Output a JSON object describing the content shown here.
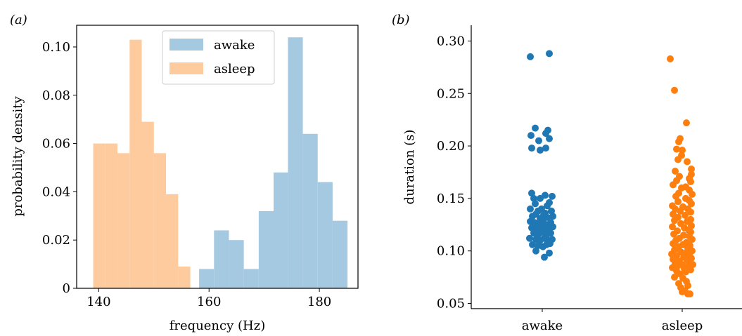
{
  "chart_data": [
    {
      "panel_label": "(a)",
      "type": "bar",
      "subtype": "histogram",
      "xlabel": "frequency (Hz)",
      "ylabel": "probability density",
      "xlim": [
        136,
        187
      ],
      "ylim": [
        0,
        0.109
      ],
      "xticks": [
        140,
        160,
        180
      ],
      "yticks": [
        0,
        0.02,
        0.04,
        0.06,
        0.08,
        0.1
      ],
      "ytick_labels": [
        "0",
        "0.02",
        "0.04",
        "0.06",
        "0.08",
        "0.10"
      ],
      "legend_position": "top-center",
      "series": [
        {
          "name": "awake",
          "color": "#a6c9e2",
          "bin_edges": [
            158.2,
            160.9,
            163.6,
            166.3,
            169.0,
            171.7,
            174.3,
            177.0,
            179.7,
            182.4,
            185.1
          ],
          "values": [
            0.008,
            0.024,
            0.02,
            0.008,
            0.032,
            0.048,
            0.104,
            0.064,
            0.044,
            0.028
          ]
        },
        {
          "name": "asleep",
          "color": "#fdcb9e",
          "bin_edges": [
            139.0,
            141.2,
            143.4,
            145.6,
            147.8,
            150.0,
            152.2,
            154.4,
            156.6
          ],
          "values": [
            0.06,
            0.06,
            0.056,
            0.103,
            0.069,
            0.056,
            0.039,
            0.009
          ]
        }
      ]
    },
    {
      "panel_label": "(b)",
      "type": "scatter",
      "subtype": "strip",
      "xlabel": "",
      "ylabel": "duration (s)",
      "categories": [
        "awake",
        "asleep"
      ],
      "ylim": [
        0.045,
        0.315
      ],
      "yticks": [
        0.05,
        0.1,
        0.15,
        0.2,
        0.25,
        0.3
      ],
      "ytick_labels": [
        "0.05",
        "0.10",
        "0.15",
        "0.20",
        "0.25",
        "0.30"
      ],
      "series": [
        {
          "name": "awake",
          "color": "#1f77b4",
          "points": [
            [
              -0.17,
              0.285
            ],
            [
              0.1,
              0.288
            ],
            [
              -0.1,
              0.217
            ],
            [
              0.08,
              0.215
            ],
            [
              -0.16,
              0.21
            ],
            [
              0.05,
              0.212
            ],
            [
              0.1,
              0.207
            ],
            [
              -0.05,
              0.205
            ],
            [
              -0.15,
              0.198
            ],
            [
              -0.03,
              0.196
            ],
            [
              0.05,
              0.198
            ],
            [
              -0.15,
              0.155
            ],
            [
              -0.12,
              0.15
            ],
            [
              -0.03,
              0.15
            ],
            [
              0.04,
              0.153
            ],
            [
              0.14,
              0.152
            ],
            [
              -0.1,
              0.145
            ],
            [
              0.07,
              0.143
            ],
            [
              0.1,
              0.146
            ],
            [
              -0.17,
              0.14
            ],
            [
              -0.06,
              0.138
            ],
            [
              -0.01,
              0.14
            ],
            [
              0.04,
              0.136
            ],
            [
              0.13,
              0.138
            ],
            [
              -0.14,
              0.133
            ],
            [
              -0.09,
              0.135
            ],
            [
              -0.03,
              0.131
            ],
            [
              0.02,
              0.134
            ],
            [
              0.07,
              0.132
            ],
            [
              0.15,
              0.133
            ],
            [
              -0.17,
              0.128
            ],
            [
              -0.11,
              0.127
            ],
            [
              -0.05,
              0.126
            ],
            [
              0.01,
              0.128
            ],
            [
              0.06,
              0.125
            ],
            [
              0.12,
              0.127
            ],
            [
              -0.15,
              0.122
            ],
            [
              -0.08,
              0.121
            ],
            [
              -0.02,
              0.123
            ],
            [
              0.04,
              0.121
            ],
            [
              0.09,
              0.12
            ],
            [
              0.15,
              0.123
            ],
            [
              -0.12,
              0.117
            ],
            [
              -0.05,
              0.116
            ],
            [
              0.0,
              0.118
            ],
            [
              0.06,
              0.115
            ],
            [
              0.12,
              0.117
            ],
            [
              -0.18,
              0.112
            ],
            [
              -0.09,
              0.111
            ],
            [
              -0.03,
              0.11
            ],
            [
              0.03,
              0.112
            ],
            [
              0.08,
              0.11
            ],
            [
              0.14,
              0.111
            ],
            [
              -0.14,
              0.106
            ],
            [
              -0.06,
              0.105
            ],
            [
              0.01,
              0.104
            ],
            [
              0.06,
              0.106
            ],
            [
              0.11,
              0.107
            ],
            [
              -0.09,
              0.1
            ],
            [
              0.1,
              0.098
            ],
            [
              0.03,
              0.094
            ]
          ]
        },
        {
          "name": "asleep",
          "color": "#ff7f0e",
          "points": [
            [
              -0.17,
              0.283
            ],
            [
              -0.11,
              0.253
            ],
            [
              0.06,
              0.222
            ],
            [
              -0.03,
              0.207
            ],
            [
              -0.05,
              0.204
            ],
            [
              -0.08,
              0.197
            ],
            [
              0.0,
              0.196
            ],
            [
              -0.01,
              0.191
            ],
            [
              -0.06,
              0.187
            ],
            [
              0.07,
              0.185
            ],
            [
              0.13,
              0.178
            ],
            [
              -0.1,
              0.176
            ],
            [
              0.13,
              0.173
            ],
            [
              -0.04,
              0.171
            ],
            [
              0.1,
              0.169
            ],
            [
              -0.08,
              0.167
            ],
            [
              0.12,
              0.166
            ],
            [
              -0.13,
              0.163
            ],
            [
              0.05,
              0.161
            ],
            [
              -0.01,
              0.16
            ],
            [
              0.1,
              0.158
            ],
            [
              -0.05,
              0.155
            ],
            [
              0.14,
              0.154
            ],
            [
              -0.09,
              0.152
            ],
            [
              0.05,
              0.15
            ],
            [
              0.1,
              0.148
            ],
            [
              -0.06,
              0.147
            ],
            [
              0.13,
              0.145
            ],
            [
              -0.14,
              0.143
            ],
            [
              0.01,
              0.142
            ],
            [
              -0.1,
              0.14
            ],
            [
              0.08,
              0.14
            ],
            [
              -0.03,
              0.138
            ],
            [
              0.12,
              0.137
            ],
            [
              -0.13,
              0.135
            ],
            [
              0.04,
              0.134
            ],
            [
              -0.06,
              0.132
            ],
            [
              0.12,
              0.13
            ],
            [
              -0.11,
              0.129
            ],
            [
              0.07,
              0.128
            ],
            [
              -0.02,
              0.126
            ],
            [
              0.13,
              0.124
            ],
            [
              -0.14,
              0.123
            ],
            [
              0.03,
              0.122
            ],
            [
              0.09,
              0.12
            ],
            [
              -0.07,
              0.119
            ],
            [
              0.12,
              0.118
            ],
            [
              -0.12,
              0.116
            ],
            [
              0.02,
              0.115
            ],
            [
              0.1,
              0.114
            ],
            [
              -0.04,
              0.112
            ],
            [
              0.14,
              0.111
            ],
            [
              -0.09,
              0.11
            ],
            [
              0.06,
              0.108
            ],
            [
              -0.13,
              0.107
            ],
            [
              0.01,
              0.106
            ],
            [
              0.11,
              0.105
            ],
            [
              -0.05,
              0.104
            ],
            [
              0.08,
              0.102
            ],
            [
              -0.11,
              0.101
            ],
            [
              0.14,
              0.1
            ],
            [
              -0.02,
              0.099
            ],
            [
              0.05,
              0.098
            ],
            [
              -0.15,
              0.097
            ],
            [
              0.1,
              0.096
            ],
            [
              -0.08,
              0.095
            ],
            [
              0.02,
              0.094
            ],
            [
              0.13,
              0.093
            ],
            [
              -0.13,
              0.092
            ],
            [
              0.07,
              0.091
            ],
            [
              -0.04,
              0.09
            ],
            [
              0.11,
              0.089
            ],
            [
              -0.1,
              0.088
            ],
            [
              0.0,
              0.087
            ],
            [
              0.15,
              0.087
            ],
            [
              -0.06,
              0.086
            ],
            [
              0.08,
              0.085
            ],
            [
              -0.14,
              0.084
            ],
            [
              0.03,
              0.083
            ],
            [
              0.12,
              0.082
            ],
            [
              -0.08,
              0.081
            ],
            [
              0.05,
              0.08
            ],
            [
              -0.03,
              0.078
            ],
            [
              -0.11,
              0.075
            ],
            [
              0.01,
              0.074
            ],
            [
              0.06,
              0.071
            ],
            [
              -0.05,
              0.069
            ],
            [
              0.08,
              0.067
            ],
            [
              -0.02,
              0.065
            ],
            [
              0.04,
              0.062
            ],
            [
              0.0,
              0.061
            ],
            [
              0.08,
              0.059
            ],
            [
              0.11,
              0.059
            ]
          ]
        }
      ]
    }
  ]
}
